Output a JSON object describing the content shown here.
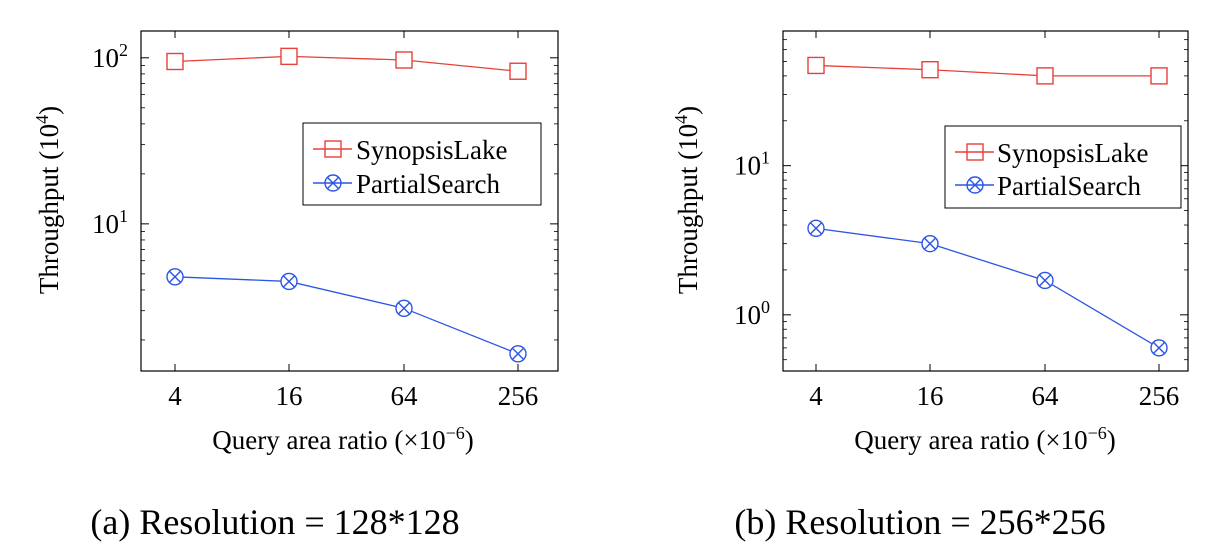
{
  "chart_data": [
    {
      "type": "line",
      "caption": "(a) Resolution = 128*128",
      "xlabel": "Query area ratio (×10",
      "xlabel_sup": "−6",
      "xlabel_end": ")",
      "ylabel": "Throughput (10",
      "ylabel_sup": "4",
      "ylabel_end": ")",
      "y_scale": "log",
      "categories": [
        "4",
        "16",
        "64",
        "256"
      ],
      "yticks": [
        {
          "base": "10",
          "exp": "1",
          "value": 10
        },
        {
          "base": "10",
          "exp": "2",
          "value": 100
        }
      ],
      "ylim": [
        1.3,
        145
      ],
      "legend_position": "right",
      "series": [
        {
          "name": "SynopsisLake",
          "values": [
            95,
            102,
            97,
            83
          ],
          "color": "#e8403a",
          "marker": "square"
        },
        {
          "name": "PartialSearch",
          "values": [
            4.8,
            4.5,
            3.1,
            1.65
          ],
          "color": "#2b55e6",
          "marker": "circle-x"
        }
      ]
    },
    {
      "type": "line",
      "caption": "(b) Resolution = 256*256",
      "xlabel": "Query area ratio (×10",
      "xlabel_sup": "−6",
      "xlabel_end": ")",
      "ylabel": "Throughput (10",
      "ylabel_sup": "4",
      "ylabel_end": ")",
      "y_scale": "log",
      "categories": [
        "4",
        "16",
        "64",
        "256"
      ],
      "yticks": [
        {
          "base": "10",
          "exp": "0",
          "value": 1
        },
        {
          "base": "10",
          "exp": "1",
          "value": 10
        }
      ],
      "ylim": [
        0.42,
        80
      ],
      "legend_position": "right",
      "series": [
        {
          "name": "SynopsisLake",
          "values": [
            47,
            44,
            40,
            40
          ],
          "color": "#e8403a",
          "marker": "square"
        },
        {
          "name": "PartialSearch",
          "values": [
            3.8,
            3.0,
            1.7,
            0.6
          ],
          "color": "#2b55e6",
          "marker": "circle-x"
        }
      ]
    }
  ]
}
